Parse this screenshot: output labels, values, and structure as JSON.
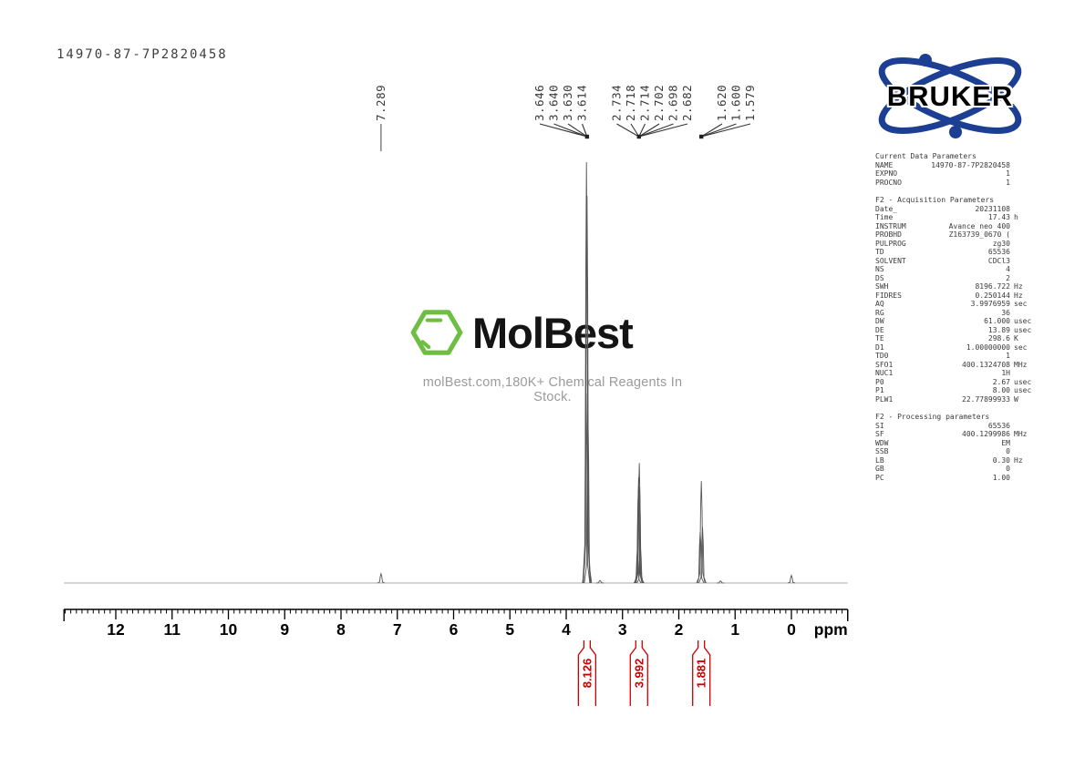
{
  "sample_id": "14970-87-7P2820458",
  "watermark": {
    "brand": "MolBest",
    "tagline": "molBest.com,180K+ Chemical Reagents In Stock.",
    "green": "#6fbe44"
  },
  "bruker": {
    "label": "BRUKER",
    "blue": "#1c3f94"
  },
  "parameters": {
    "sections": [
      {
        "title": "Current Data Parameters",
        "rows": [
          {
            "k": "NAME",
            "v": "14970-87-7P2820458",
            "u": ""
          },
          {
            "k": "EXPNO",
            "v": "1",
            "u": ""
          },
          {
            "k": "PROCNO",
            "v": "1",
            "u": ""
          }
        ]
      },
      {
        "title": "F2 - Acquisition Parameters",
        "rows": [
          {
            "k": "Date_",
            "v": "20231108",
            "u": ""
          },
          {
            "k": "Time",
            "v": "17.43",
            "u": "h"
          },
          {
            "k": "INSTRUM",
            "v": "Avance neo 400",
            "u": ""
          },
          {
            "k": "PROBHD",
            "v": "Z163739_0670 (",
            "u": ""
          },
          {
            "k": "PULPROG",
            "v": "zg30",
            "u": ""
          },
          {
            "k": "TD",
            "v": "65536",
            "u": ""
          },
          {
            "k": "SOLVENT",
            "v": "CDCl3",
            "u": ""
          },
          {
            "k": "NS",
            "v": "4",
            "u": ""
          },
          {
            "k": "DS",
            "v": "2",
            "u": ""
          },
          {
            "k": "SWH",
            "v": "8196.722",
            "u": "Hz"
          },
          {
            "k": "FIDRES",
            "v": "0.250144",
            "u": "Hz"
          },
          {
            "k": "AQ",
            "v": "3.9976959",
            "u": "sec"
          },
          {
            "k": "RG",
            "v": "36",
            "u": ""
          },
          {
            "k": "DW",
            "v": "61.000",
            "u": "usec"
          },
          {
            "k": "DE",
            "v": "13.89",
            "u": "usec"
          },
          {
            "k": "TE",
            "v": "298.6",
            "u": "K"
          },
          {
            "k": "D1",
            "v": "1.00000000",
            "u": "sec"
          },
          {
            "k": "TD0",
            "v": "1",
            "u": ""
          },
          {
            "k": "SFO1",
            "v": "400.1324708",
            "u": "MHz"
          },
          {
            "k": "NUC1",
            "v": "1H",
            "u": ""
          },
          {
            "k": "P0",
            "v": "2.67",
            "u": "usec"
          },
          {
            "k": "P1",
            "v": "8.00",
            "u": "usec"
          },
          {
            "k": "PLW1",
            "v": "22.77899933",
            "u": "W"
          }
        ]
      },
      {
        "title": "F2 - Processing parameters",
        "rows": [
          {
            "k": "SI",
            "v": "65536",
            "u": ""
          },
          {
            "k": "SF",
            "v": "400.1299986",
            "u": "MHz"
          },
          {
            "k": "WDW",
            "v": "EM",
            "u": ""
          },
          {
            "k": "SSB",
            "v": "0",
            "u": ""
          },
          {
            "k": "LB",
            "v": "0.30",
            "u": "Hz"
          },
          {
            "k": "GB",
            "v": "0",
            "u": ""
          },
          {
            "k": "PC",
            "v": "1.00",
            "u": ""
          }
        ]
      }
    ]
  },
  "chart_data": {
    "type": "line",
    "kind": "1H NMR spectrum",
    "xlabel": "ppm",
    "x_ticks": [
      12,
      11,
      10,
      9,
      8,
      7,
      6,
      5,
      4,
      3,
      2,
      1,
      0
    ],
    "x_range": [
      12.92,
      -1.0
    ],
    "grid": false,
    "peak_color": "#555555",
    "baseline_color": "#aaaaaa",
    "label_color": "#3a3a3a",
    "integral_color": "#cc0000",
    "peaks": [
      {
        "apex_ppm": 7.289,
        "rel_height": 0.022,
        "lines": [
          {
            "ppm": 7.289,
            "h": 1.0
          }
        ]
      },
      {
        "apex_ppm": 3.63,
        "rel_height": 1.0,
        "lines": [
          {
            "ppm": 3.646,
            "h": 0.45
          },
          {
            "ppm": 3.64,
            "h": 1.0
          },
          {
            "ppm": 3.63,
            "h": 0.92
          },
          {
            "ppm": 3.614,
            "h": 0.4
          }
        ]
      },
      {
        "apex_ppm": 2.708,
        "rel_height": 0.285,
        "lines": [
          {
            "ppm": 2.734,
            "h": 0.28
          },
          {
            "ppm": 2.718,
            "h": 0.78
          },
          {
            "ppm": 2.714,
            "h": 0.88
          },
          {
            "ppm": 2.702,
            "h": 1.0
          },
          {
            "ppm": 2.698,
            "h": 0.8
          },
          {
            "ppm": 2.682,
            "h": 0.3
          }
        ]
      },
      {
        "apex_ppm": 1.6,
        "rel_height": 0.242,
        "lines": [
          {
            "ppm": 1.62,
            "h": 0.5
          },
          {
            "ppm": 1.6,
            "h": 1.0
          },
          {
            "ppm": 1.579,
            "h": 0.55
          }
        ]
      },
      {
        "apex_ppm": 3.4,
        "rel_height": 0.006,
        "lines": [
          {
            "ppm": 3.4,
            "h": 1.0
          }
        ]
      },
      {
        "apex_ppm": 1.26,
        "rel_height": 0.005,
        "lines": [
          {
            "ppm": 1.26,
            "h": 1.0
          }
        ]
      },
      {
        "apex_ppm": 0.0,
        "rel_height": 0.018,
        "lines": [
          {
            "ppm": 0.0,
            "h": 1.0
          }
        ]
      }
    ],
    "peak_label_groups": [
      {
        "labels": [
          "7.289"
        ],
        "apex_ppm": 7.289
      },
      {
        "labels": [
          "3.646",
          "3.640",
          "3.630",
          "3.614"
        ],
        "apex_ppm": 3.63
      },
      {
        "labels": [
          "2.734",
          "2.718",
          "2.714",
          "2.702",
          "2.698",
          "2.682"
        ],
        "apex_ppm": 2.708
      },
      {
        "labels": [
          "1.620",
          "1.600",
          "1.579"
        ],
        "apex_ppm": 1.6
      }
    ],
    "integrations": [
      {
        "value": "8.126",
        "ppm": 3.63
      },
      {
        "value": "3.992",
        "ppm": 2.708
      },
      {
        "value": "1.881",
        "ppm": 1.6
      }
    ]
  }
}
